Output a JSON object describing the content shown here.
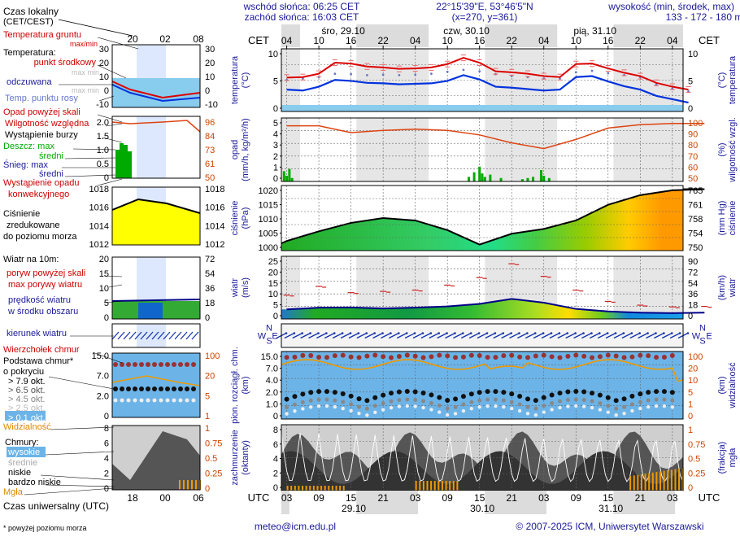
{
  "header": {
    "sunrise": "wschód słońca: 06:25 CET",
    "sunset": "zachód słońca: 16:03 CET",
    "coords": "22°15'39\"E, 53°46'5\"N",
    "grid": "(x=270, y=361)",
    "elev_title": "wysokość (min, środek, max)",
    "elev_values": "133 - 172 - 180 m"
  },
  "legend": {
    "local_time": "Czas lokalny",
    "local_time2": "(CET/CEST)",
    "top_ticks": [
      "20",
      "02",
      "08"
    ],
    "bottom_ticks": [
      "18",
      "00",
      "06"
    ],
    "ground_temp": "Temperatura gruntu",
    "maxmin": "max/min",
    "temperature": "Temperatura:",
    "center_point": "punkt środkowy",
    "max_min": "max min",
    "perceived": "odczuwana",
    "max_min2": "max min",
    "dew_point": "Temp. punktu rosy",
    "precip_above": "Opad powyżej skali",
    "humidity": "Wilgotność względna",
    "storm": "Wystąpienie burzy",
    "rain_max": "Deszcz: max",
    "rain_mid": "średni",
    "snow_max": "Śnieg:    max",
    "snow_mid": "średni",
    "conv": "Wystąpienie opadu",
    "conv2": "konwekcyjnego",
    "pressure": "Ciśnienie",
    "pressure2": "zredukowane",
    "pressure3": "do poziomu morza",
    "wind": "Wiatr na 10m:",
    "gust_above": "poryw powyżej skali",
    "gust_max": "max porywy wiatru",
    "wind_mid": "prędkość wiatru",
    "wind_mid2": "w środku obszaru",
    "wind_dir": "kierunek wiatru",
    "cloud_top": "Wierzchołek chmur",
    "cloud_base": "Podstawa chmur*",
    "cloud_base2": "o pokryciu",
    "okt": [
      "> 7.9 okt.",
      "> 6.5 okt.",
      "> 4.5 okt.",
      "> 2.5 okt.",
      "> 0.1 okt."
    ],
    "visibility": "Widzialność",
    "clouds": "Chmury:",
    "high": "wysokie",
    "mid": "średnie",
    "low": "niskie",
    "very_low": "bardzo niskie",
    "fog": "Mgła",
    "utc": "Czas uniwersalny (UTC)",
    "footnote": "* powyżej poziomu morza",
    "t_ticks_l": [
      "30",
      "20",
      "10",
      "0",
      "-10"
    ],
    "t_ticks_r": [
      "30",
      "20",
      "10",
      "0",
      "-10"
    ],
    "p_ticks_l": [
      "2.0",
      "1.5",
      "1.0",
      "0.5",
      "0"
    ],
    "p_ticks_r": [
      "96",
      "84",
      "73",
      "61",
      "50"
    ],
    "pr_ticks_l": [
      "1018",
      "1016",
      "1014",
      "1012"
    ],
    "pr_ticks_r": [
      "1018",
      "1016",
      "1014",
      "1012"
    ],
    "w_ticks_l": [
      "20",
      "15",
      "10",
      "5",
      "0"
    ],
    "w_ticks_r": [
      "72",
      "54",
      "36",
      "18",
      "0"
    ],
    "c_ticks_l": [
      "15.0",
      "7.0",
      "2.0",
      "0"
    ],
    "c_ticks_r": [
      "100",
      "20",
      "5",
      "1"
    ],
    "o_ticks_l": [
      "8",
      "6",
      "4",
      "2",
      "0"
    ],
    "o_ticks_r": [
      "1",
      "0.75",
      "0.5",
      "0.25",
      "0"
    ]
  },
  "main": {
    "cet": "CET",
    "utc": "UTC",
    "days_top": [
      "śro, 29.10",
      "czw, 30.10",
      "pią, 31.10"
    ],
    "hours_top": [
      "04",
      "10",
      "16",
      "22",
      "04",
      "10",
      "16",
      "22",
      "04",
      "10",
      "16",
      "22",
      "04"
    ],
    "hours_bottom": [
      "03",
      "09",
      "15",
      "21",
      "03",
      "09",
      "15",
      "21",
      "03",
      "09",
      "15",
      "21",
      "03"
    ],
    "days_bottom": [
      "29.10",
      "30.10",
      "31.10"
    ],
    "panels": {
      "temp": {
        "label_l": [
          "temperatura",
          "(°C)"
        ],
        "label_r": [
          "temperatura",
          "(°C)"
        ],
        "ticks_l": [
          "10",
          "5",
          "0"
        ],
        "ticks_r": [
          "10",
          "5",
          "0"
        ]
      },
      "precip": {
        "label_l": [
          "opad",
          "(mm/h, kg/m²/h)"
        ],
        "label_r": [
          "wilgotność wzgl.",
          "(%)"
        ],
        "ticks_l": [
          "5",
          "4",
          "3",
          "2",
          "1",
          "0"
        ],
        "ticks_r": [
          "100",
          "90",
          "80",
          "70",
          "60",
          "50"
        ]
      },
      "pressure": {
        "label_l": [
          "ciśnienie",
          "(hPa)"
        ],
        "label_r": [
          "ciśnienie",
          "(mm Hg)"
        ],
        "ticks_l": [
          "1020",
          "1015",
          "1010",
          "1005",
          "1000"
        ],
        "ticks_r": [
          "765",
          "761",
          "758",
          "754",
          "750"
        ]
      },
      "wind": {
        "label_l": [
          "wiatr",
          "(m/s)"
        ],
        "label_r": [
          "wiatr",
          "(km/h)"
        ],
        "ticks_l": [
          "25",
          "20",
          "15",
          "10",
          "5",
          "0"
        ],
        "ticks_r": [
          "90",
          "72",
          "54",
          "36",
          "18",
          "0"
        ]
      },
      "cloudbase": {
        "label_l": [
          "pion. rozciągł. chm.",
          "(km)"
        ],
        "label_r": [
          "widzialność",
          "(km)"
        ],
        "ticks_l": [
          "15.0",
          "7.0",
          "4.0",
          "2.0",
          "1.0",
          "0"
        ],
        "ticks_r": [
          "100",
          "20",
          "10",
          "5",
          "1",
          "0"
        ]
      },
      "clouds": {
        "label_l": [
          "zachmurzenie",
          "(oktanty)"
        ],
        "label_r": [
          "mgła",
          "(frakcja)"
        ],
        "ticks_l": [
          "8",
          "6",
          "4",
          "2",
          "0"
        ],
        "ticks_r": [
          "1",
          "0.75",
          "0.5",
          "0.25",
          "0"
        ]
      }
    },
    "dir_labels": {
      "n": "N",
      "s": "S",
      "w": "W",
      "e": "E"
    }
  },
  "footer": {
    "email": "meteo@icm.edu.pl",
    "copyright": "© 2007-2025 ICM, Uniwersytet Warszawski"
  },
  "colors": {
    "label_blue": "#1a1a9a",
    "temp_red": "#dd0000",
    "temp_blue": "#0033dd",
    "humidity_line": "#dd4411",
    "rain_green": "#00aa00",
    "wind_line": "#000088",
    "vis_orange": "#ee9900",
    "cloud_dot": "#993333"
  },
  "chart_data": [
    {
      "type": "line",
      "title": "temperatura (°C)",
      "x": [
        "29.10 03",
        "29.10 06",
        "29.10 09",
        "29.10 12",
        "29.10 15",
        "29.10 18",
        "29.10 21",
        "30.10 00",
        "30.10 03",
        "30.10 06",
        "30.10 09",
        "30.10 12",
        "30.10 15",
        "30.10 18",
        "30.10 21",
        "31.10 00",
        "31.10 03",
        "31.10 06",
        "31.10 09",
        "31.10 12",
        "31.10 15",
        "31.10 18",
        "31.10 21",
        "01.11 00",
        "01.11 03",
        "01.11 06"
      ],
      "series": [
        {
          "name": "punkt środkowy",
          "values": [
            5.7,
            5.8,
            6.5,
            8.8,
            8.6,
            8.0,
            7.8,
            7.5,
            7.6,
            7.8,
            8.5,
            9.8,
            8.8,
            7.0,
            6.8,
            6.5,
            6.0,
            5.8,
            8.5,
            8.6,
            7.6,
            6.7,
            6.0,
            4.6,
            3.8,
            3.2
          ]
        },
        {
          "name": "odczuwana",
          "values": [
            3.2,
            3.0,
            3.8,
            5.2,
            5.0,
            4.6,
            4.5,
            4.3,
            4.4,
            4.5,
            5.0,
            6.2,
            5.3,
            3.8,
            3.6,
            3.3,
            3.0,
            3.2,
            5.8,
            6.0,
            4.9,
            3.9,
            3.2,
            1.9,
            1.2,
            0.5
          ]
        },
        {
          "name": "Temp. punktu rosy",
          "values": [
            5.2,
            5.5,
            5.8,
            6.5,
            6.4,
            6.2,
            6.3,
            6.2,
            6.3,
            6.5,
            6.9,
            7.3,
            7.0,
            6.4,
            6.0,
            5.8,
            5.5,
            5.5,
            6.8,
            7.1,
            6.6,
            6.2,
            5.8,
            4.3,
            3.4,
            2.8
          ]
        }
      ],
      "ylim": [
        0,
        11
      ]
    },
    {
      "type": "line",
      "title": "ciśnienie (hPa)",
      "x": [
        "29.10 03",
        "29.10 09",
        "29.10 15",
        "29.10 21",
        "30.10 03",
        "30.10 09",
        "30.10 15",
        "30.10 21",
        "31.10 03",
        "31.10 09",
        "31.10 15",
        "31.10 21",
        "01.11 03",
        "01.11 06"
      ],
      "series": [
        {
          "name": "Ciśnienie",
          "values": [
            1000,
            1004,
            1007.5,
            1009.5,
            1008.5,
            1004.5,
            998.5,
            1003,
            1005,
            1008.5,
            1015,
            1019,
            1021,
            1021.5
          ]
        }
      ],
      "ylim": [
        996,
        1023
      ]
    },
    {
      "type": "line",
      "title": "wiatr (m/s)",
      "x": [
        "29.10 03",
        "29.10 09",
        "29.10 15",
        "29.10 21",
        "30.10 03",
        "30.10 09",
        "30.10 15",
        "30.10 21",
        "31.10 03",
        "31.10 09",
        "31.10 15",
        "31.10 21",
        "01.11 03",
        "01.11 06"
      ],
      "series": [
        {
          "name": "prędkość wiatru",
          "values": [
            3.8,
            4.5,
            4.6,
            4.2,
            4.5,
            5.0,
            6.0,
            8.0,
            6.5,
            4.0,
            3.0,
            2.5,
            2.3,
            2.5
          ]
        },
        {
          "name": "max porywy wiatru",
          "values": [
            9.5,
            13.0,
            10.5,
            11.0,
            11.5,
            13.5,
            16.5,
            22.0,
            17.0,
            11.5,
            7.0,
            5.5,
            4.8,
            5.0
          ]
        }
      ],
      "ylim": [
        0,
        25
      ]
    },
    {
      "type": "line",
      "title": "wilgotność wzgl. (%)",
      "x": [
        "29.10 03",
        "29.10 09",
        "29.10 15",
        "29.10 21",
        "30.10 03",
        "30.10 09",
        "30.10 15",
        "30.10 21",
        "31.10 03",
        "31.10 09",
        "31.10 15",
        "31.10 21",
        "01.11 03",
        "01.11 06"
      ],
      "series": [
        {
          "name": "Wilgotność względna",
          "values": [
            96,
            96,
            90,
            92,
            93,
            92,
            88,
            81,
            76,
            84,
            94,
            97,
            98,
            98
          ]
        }
      ],
      "ylim": [
        50,
        100
      ]
    }
  ]
}
